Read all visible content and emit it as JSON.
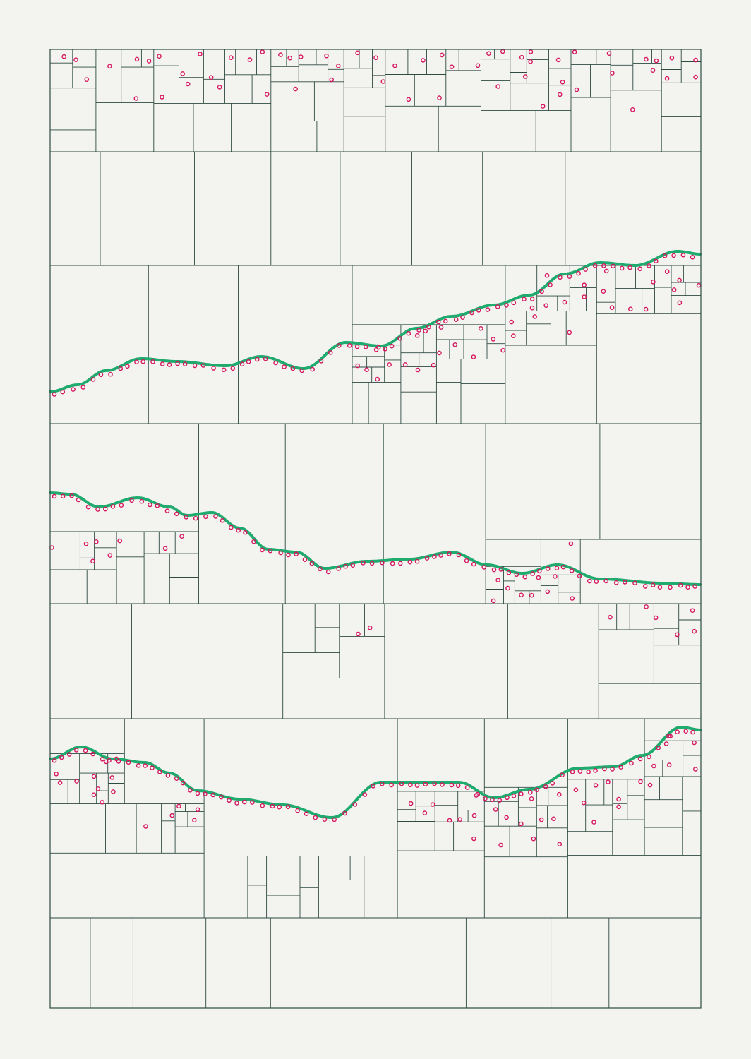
{
  "artwork": {
    "background_color": "#f3f3f0",
    "grid_color": "#2e4a42",
    "point_color": "#d6175f",
    "curve_color": "#1faa6e",
    "grid_lines": "on",
    "point_marker": "ring"
  }
}
